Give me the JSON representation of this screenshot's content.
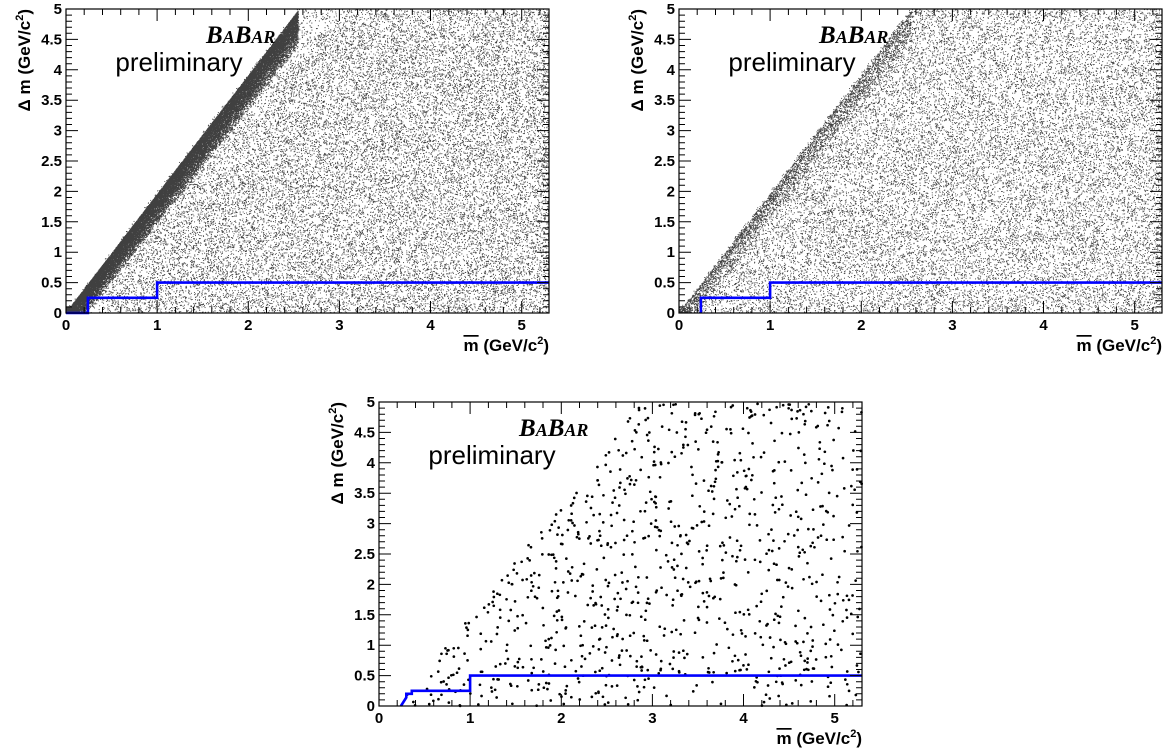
{
  "chart_data": [
    {
      "type": "scatter",
      "xlabel_prefix": "m",
      "xlabel_suffix": " (GeV/c",
      "xlabel_sup": "2",
      "xlabel_close": ")",
      "ylabel_prefix": "Δ m (GeV/c",
      "ylabel_sup": "2",
      "ylabel_close": ")",
      "xlim": [
        0,
        5.3
      ],
      "ylim": [
        0,
        5
      ],
      "xticks": [
        "0",
        "1",
        "2",
        "3",
        "4",
        "5"
      ],
      "yticks": [
        "0",
        "0.5",
        "1",
        "1.5",
        "2",
        "2.5",
        "3",
        "3.5",
        "4",
        "4.5",
        "5"
      ],
      "logo_big1": "B",
      "logo_small1": "A",
      "logo_big2": "B",
      "logo_small2": "AR",
      "annotation": "preliminary",
      "selection_curve": {
        "x": [
          0,
          0.24,
          0.24,
          1.0,
          1.0,
          5.3
        ],
        "y": [
          0,
          0,
          0.25,
          0.25,
          0.5,
          0.5
        ],
        "color": "#0000ff"
      },
      "point_color": "#000000",
      "density": "dense, concentrated along the upper edge Δm ≈ 2·m̄"
    },
    {
      "type": "scatter",
      "xlabel_prefix": "m",
      "xlabel_suffix": " (GeV/c",
      "xlabel_sup": "2",
      "xlabel_close": ")",
      "ylabel_prefix": "Δ m (GeV/c",
      "ylabel_sup": "2",
      "ylabel_close": ")",
      "xlim": [
        0,
        5.3
      ],
      "ylim": [
        0,
        5
      ],
      "xticks": [
        "0",
        "1",
        "2",
        "3",
        "4",
        "5"
      ],
      "yticks": [
        "0",
        "0.5",
        "1",
        "1.5",
        "2",
        "2.5",
        "3",
        "3.5",
        "4",
        "4.5",
        "5"
      ],
      "logo_big1": "B",
      "logo_small1": "A",
      "logo_big2": "B",
      "logo_small2": "AR",
      "annotation": "preliminary",
      "selection_curve": {
        "x": [
          0.24,
          0.24,
          1.0,
          1.0,
          5.3
        ],
        "y": [
          0,
          0.25,
          0.25,
          0.5,
          0.5
        ],
        "color": "#0000ff"
      },
      "point_color": "#000000",
      "density": "medium, more uniform below Δm ≈ 2·m̄"
    },
    {
      "type": "scatter",
      "xlabel_prefix": "m",
      "xlabel_suffix": " (GeV/c",
      "xlabel_sup": "2",
      "xlabel_close": ")",
      "ylabel_prefix": "Δ m (GeV/c",
      "ylabel_sup": "2",
      "ylabel_close": ")",
      "xlim": [
        0,
        5.3
      ],
      "ylim": [
        0,
        5
      ],
      "xticks": [
        "0",
        "1",
        "2",
        "3",
        "4",
        "5"
      ],
      "yticks": [
        "0",
        "0.5",
        "1",
        "1.5",
        "2",
        "2.5",
        "3",
        "3.5",
        "4",
        "4.5",
        "5"
      ],
      "logo_big1": "B",
      "logo_small1": "A",
      "logo_big2": "B",
      "logo_small2": "AR",
      "annotation": "preliminary",
      "selection_curve": {
        "x": [
          0.24,
          0.3,
          0.3,
          0.36,
          0.36,
          1.0,
          1.0,
          5.3
        ],
        "y": [
          0,
          0.14,
          0.2,
          0.2,
          0.25,
          0.25,
          0.5,
          0.5
        ],
        "color": "#0000ff"
      },
      "point_color": "#000000",
      "density": "sparse, about 900 points inside the triangle Δm < 2·m̄"
    }
  ]
}
